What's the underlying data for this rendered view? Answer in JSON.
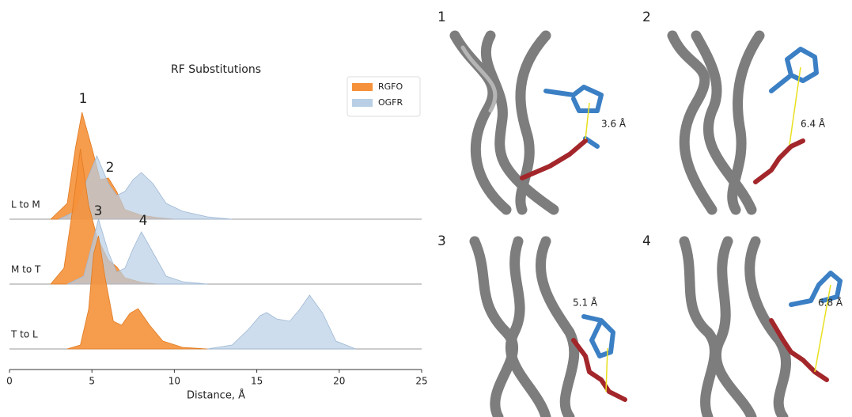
{
  "chart_data": {
    "type": "ridgeline",
    "title": "RF Substitutions",
    "x_label": "Distance, Å",
    "xlim": [
      0,
      25
    ],
    "xticks": [
      0,
      5,
      10,
      15,
      20,
      25
    ],
    "categories": [
      "L to M",
      "M to T",
      "T to L"
    ],
    "legend_position": "upper right",
    "series": [
      {
        "name": "RGFO",
        "color": "#f5913a",
        "rows": [
          {
            "x": [
              2.5,
              3.5,
              4,
              4.4,
              5,
              5.5,
              6,
              6.5,
              7,
              8,
              9,
              10
            ],
            "values": [
              0,
              0.2,
              0.9,
              1.35,
              0.9,
              0.5,
              0.52,
              0.35,
              0.12,
              0.05,
              0.02,
              0
            ]
          },
          {
            "x": [
              2.5,
              3.3,
              3.8,
              4.3,
              4.8,
              5.3,
              6,
              6.5,
              7,
              8,
              9
            ],
            "values": [
              0,
              0.2,
              0.9,
              1.71,
              1.0,
              0.6,
              0.3,
              0.22,
              0.08,
              0.02,
              0
            ]
          },
          {
            "x": [
              3.5,
              4.3,
              4.8,
              5.1,
              5.4,
              5.8,
              6.3,
              6.8,
              7.3,
              7.8,
              8.5,
              9.3,
              10.5,
              12
            ],
            "values": [
              0,
              0.05,
              0.5,
              1.2,
              1.43,
              0.9,
              0.35,
              0.3,
              0.45,
              0.51,
              0.3,
              0.1,
              0.02,
              0
            ]
          }
        ]
      },
      {
        "name": "OGFR",
        "color": "#b8cfe6",
        "rows": [
          {
            "x": [
              3,
              4,
              4.7,
              5.3,
              6,
              6.5,
              7,
              7.5,
              8,
              8.7,
              9.5,
              10.5,
              12,
              13.5
            ],
            "values": [
              0,
              0.1,
              0.5,
              0.8,
              0.45,
              0.3,
              0.35,
              0.5,
              0.59,
              0.45,
              0.2,
              0.1,
              0.03,
              0
            ]
          },
          {
            "x": [
              3.5,
              4.5,
              5,
              5.4,
              6,
              6.5,
              7,
              7.5,
              8,
              8.7,
              9.5,
              10.5,
              12
            ],
            "values": [
              0,
              0.1,
              0.5,
              0.82,
              0.4,
              0.15,
              0.2,
              0.45,
              0.66,
              0.4,
              0.1,
              0.03,
              0
            ]
          },
          {
            "x": [
              12,
              13.5,
              14.5,
              15.2,
              15.6,
              16.2,
              17,
              17.6,
              18.2,
              19,
              19.8,
              21
            ],
            "values": [
              0,
              0.05,
              0.25,
              0.42,
              0.46,
              0.38,
              0.35,
              0.5,
              0.68,
              0.45,
              0.1,
              0
            ]
          }
        ]
      }
    ],
    "annotations": [
      "1",
      "2",
      "3",
      "4"
    ]
  },
  "panels": [
    {
      "label": "1",
      "distance": "3.6 Å"
    },
    {
      "label": "2",
      "distance": "6.4 Å"
    },
    {
      "label": "3",
      "distance": "5.1 Å"
    },
    {
      "label": "4",
      "distance": "6.8 Å"
    }
  ]
}
